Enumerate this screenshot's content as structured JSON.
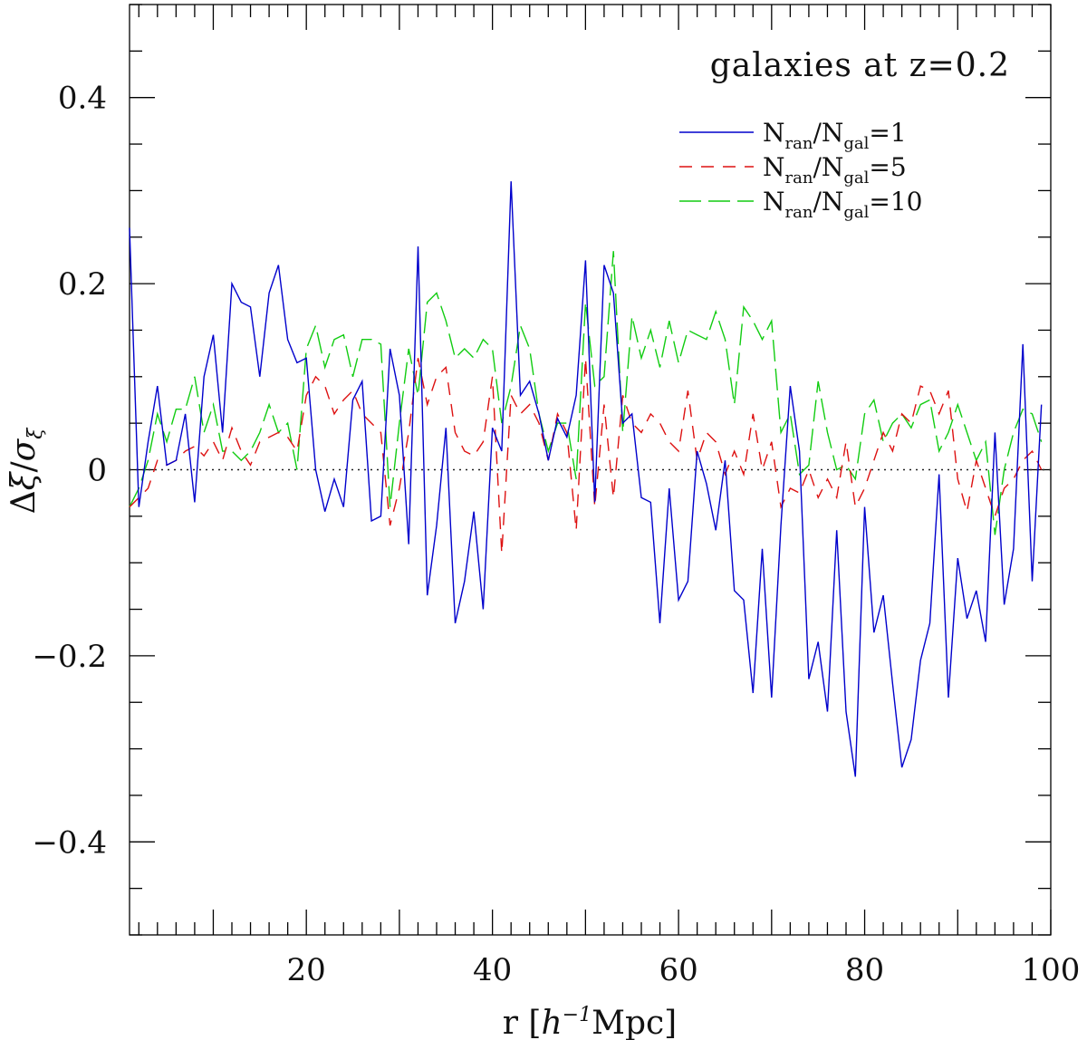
{
  "chart_data": {
    "type": "line",
    "title": "",
    "annotation": "galaxies at z=0.2",
    "xlabel": {
      "pre": "r  [",
      "italic": "h",
      "sup": "−1",
      "post": "Mpc]"
    },
    "ylabel": {
      "pre": "Δ",
      "xi": "ξ",
      "sep": "/",
      "sigma": "σ",
      "sub": "ξ"
    },
    "xlim": [
      1,
      100
    ],
    "ylim": [
      -0.5,
      0.5
    ],
    "x_ticks": [
      20,
      40,
      60,
      80,
      100
    ],
    "x_tick_labels": [
      "20",
      "40",
      "60",
      "80",
      "100"
    ],
    "y_ticks": [
      -0.4,
      -0.2,
      0,
      0.2,
      0.4
    ],
    "y_tick_labels": [
      "−0.4",
      "−0.2",
      "0",
      "0.2",
      "0.4"
    ],
    "grid": false,
    "legend_position": "top-right",
    "reference_line": {
      "y": 0,
      "style": "dotted",
      "color": "#222222"
    },
    "series": [
      {
        "name": "N_ran/N_gal=1",
        "legend": {
          "n1": "N",
          "s1": "ran",
          "slash": "/N",
          "s2": "gal",
          "eq": "=1"
        },
        "color": "#0000cc",
        "dash": "solid",
        "x": [
          1,
          2,
          3,
          4,
          5,
          6,
          7,
          8,
          9,
          10,
          11,
          12,
          13,
          14,
          15,
          16,
          17,
          18,
          19,
          20,
          21,
          22,
          23,
          24,
          25,
          26,
          27,
          28,
          29,
          30,
          31,
          32,
          33,
          34,
          35,
          36,
          37,
          38,
          39,
          40,
          41,
          42,
          43,
          44,
          45,
          46,
          47,
          48,
          49,
          50,
          51,
          52,
          53,
          54,
          55,
          56,
          57,
          58,
          59,
          60,
          61,
          62,
          63,
          64,
          65,
          66,
          67,
          68,
          69,
          70,
          71,
          72,
          73,
          74,
          75,
          76,
          77,
          78,
          79,
          80,
          81,
          82,
          83,
          84,
          85,
          86,
          87,
          88,
          89,
          90,
          91,
          92,
          93,
          94,
          95,
          96,
          97,
          98,
          99
        ],
        "values": [
          0.26,
          -0.04,
          0.03,
          0.09,
          0.005,
          0.01,
          0.06,
          -0.035,
          0.1,
          0.145,
          0.04,
          0.2,
          0.18,
          0.175,
          0.1,
          0.19,
          0.22,
          0.14,
          0.115,
          0.12,
          0.0,
          -0.045,
          -0.01,
          -0.04,
          0.075,
          0.095,
          -0.055,
          -0.05,
          0.13,
          0.08,
          -0.08,
          0.24,
          -0.135,
          -0.06,
          0.045,
          -0.165,
          -0.12,
          -0.045,
          -0.15,
          0.045,
          0.02,
          0.31,
          0.08,
          0.095,
          0.06,
          0.01,
          0.055,
          0.035,
          0.08,
          0.225,
          -0.035,
          0.22,
          0.19,
          0.05,
          0.06,
          -0.03,
          -0.035,
          -0.165,
          -0.02,
          -0.14,
          -0.12,
          0.02,
          -0.015,
          -0.065,
          0.01,
          -0.13,
          -0.14,
          -0.24,
          -0.085,
          -0.245,
          -0.06,
          0.09,
          0.02,
          -0.225,
          -0.185,
          -0.26,
          -0.065,
          -0.26,
          -0.33,
          -0.04,
          -0.175,
          -0.135,
          -0.23,
          -0.32,
          -0.29,
          -0.205,
          -0.165,
          -0.005,
          -0.245,
          -0.095,
          -0.16,
          -0.13,
          -0.185,
          0.04,
          -0.145,
          -0.085,
          0.135,
          -0.12,
          0.07
        ]
      },
      {
        "name": "N_ran/N_gal=5",
        "legend": {
          "n1": "N",
          "s1": "ran",
          "slash": "/N",
          "s2": "gal",
          "eq": "=5"
        },
        "color": "#dd1111",
        "dash": "14,10",
        "x": [
          1,
          2,
          3,
          4,
          5,
          6,
          7,
          8,
          9,
          10,
          11,
          12,
          13,
          14,
          15,
          16,
          17,
          18,
          19,
          20,
          21,
          22,
          23,
          24,
          25,
          26,
          27,
          28,
          29,
          30,
          31,
          32,
          33,
          34,
          35,
          36,
          37,
          38,
          39,
          40,
          41,
          42,
          43,
          44,
          45,
          46,
          47,
          48,
          49,
          50,
          51,
          52,
          53,
          54,
          55,
          56,
          57,
          58,
          59,
          60,
          61,
          62,
          63,
          64,
          65,
          66,
          67,
          68,
          69,
          70,
          71,
          72,
          73,
          74,
          75,
          76,
          77,
          78,
          79,
          80,
          81,
          82,
          83,
          84,
          85,
          86,
          87,
          88,
          89,
          90,
          91,
          92,
          93,
          94,
          95,
          96,
          97,
          98,
          99
        ],
        "values": [
          -0.04,
          -0.03,
          -0.02,
          0.01,
          0.005,
          0.01,
          0.02,
          0.025,
          0.015,
          0.03,
          0.01,
          0.045,
          0.02,
          0.005,
          0.03,
          0.035,
          0.04,
          0.035,
          0.02,
          0.08,
          0.1,
          0.09,
          0.06,
          0.075,
          0.085,
          0.06,
          0.05,
          0.04,
          -0.06,
          -0.02,
          0.04,
          0.12,
          0.07,
          0.1,
          0.11,
          0.04,
          0.02,
          0.015,
          0.03,
          0.1,
          -0.09,
          0.08,
          0.06,
          0.07,
          0.05,
          0.01,
          0.06,
          0.04,
          -0.065,
          0.12,
          -0.04,
          0.07,
          -0.03,
          0.08,
          0.05,
          0.04,
          0.06,
          0.05,
          0.03,
          0.02,
          0.085,
          0.01,
          0.04,
          0.03,
          -0.005,
          0.02,
          -0.005,
          0.06,
          0.0,
          0.03,
          -0.04,
          -0.02,
          -0.025,
          0.0,
          -0.03,
          -0.01,
          -0.03,
          0.03,
          -0.04,
          -0.02,
          0.01,
          0.04,
          0.02,
          0.06,
          0.05,
          0.09,
          0.085,
          0.06,
          0.085,
          -0.01,
          -0.045,
          0.01,
          -0.02,
          -0.05,
          -0.02,
          -0.01,
          0.01,
          0.02,
          0.0
        ]
      },
      {
        "name": "N_ran/N_gal=10",
        "legend": {
          "n1": "N",
          "s1": "ran",
          "slash": "/N",
          "s2": "gal",
          "eq": "=10"
        },
        "color": "#11cc11",
        "dash": "24,8",
        "x": [
          1,
          2,
          3,
          4,
          5,
          6,
          7,
          8,
          9,
          10,
          11,
          12,
          13,
          14,
          15,
          16,
          17,
          18,
          19,
          20,
          21,
          22,
          23,
          24,
          25,
          26,
          27,
          28,
          29,
          30,
          31,
          32,
          33,
          34,
          35,
          36,
          37,
          38,
          39,
          40,
          41,
          42,
          43,
          44,
          45,
          46,
          47,
          48,
          49,
          50,
          51,
          52,
          53,
          54,
          55,
          56,
          57,
          58,
          59,
          60,
          61,
          62,
          63,
          64,
          65,
          66,
          67,
          68,
          69,
          70,
          71,
          72,
          73,
          74,
          75,
          76,
          77,
          78,
          79,
          80,
          81,
          82,
          83,
          84,
          85,
          86,
          87,
          88,
          89,
          90,
          91,
          92,
          93,
          94,
          95,
          96,
          97,
          98,
          99
        ],
        "values": [
          -0.04,
          -0.02,
          0.01,
          0.06,
          0.03,
          0.065,
          0.065,
          0.1,
          0.04,
          0.07,
          0.02,
          0.02,
          0.01,
          0.02,
          0.04,
          0.07,
          0.04,
          0.05,
          0.0,
          0.13,
          0.155,
          0.11,
          0.14,
          0.145,
          0.1,
          0.14,
          0.14,
          0.135,
          -0.04,
          0.05,
          0.13,
          0.08,
          0.18,
          0.19,
          0.16,
          0.12,
          0.13,
          0.12,
          0.14,
          0.13,
          0.05,
          0.09,
          0.155,
          0.13,
          0.06,
          0.02,
          0.05,
          0.05,
          -0.01,
          0.18,
          0.09,
          0.1,
          0.235,
          0.04,
          0.165,
          0.12,
          0.15,
          0.11,
          0.16,
          0.115,
          0.15,
          0.145,
          0.14,
          0.17,
          0.14,
          0.07,
          0.175,
          0.16,
          0.14,
          0.16,
          0.04,
          0.06,
          -0.005,
          0.005,
          0.095,
          0.04,
          0.0,
          0.005,
          -0.01,
          0.06,
          0.075,
          0.03,
          0.05,
          0.06,
          0.045,
          0.07,
          0.075,
          0.02,
          0.04,
          0.07,
          0.04,
          0.01,
          0.03,
          -0.07,
          0.0,
          0.04,
          0.065,
          0.06,
          0.03
        ]
      }
    ]
  }
}
